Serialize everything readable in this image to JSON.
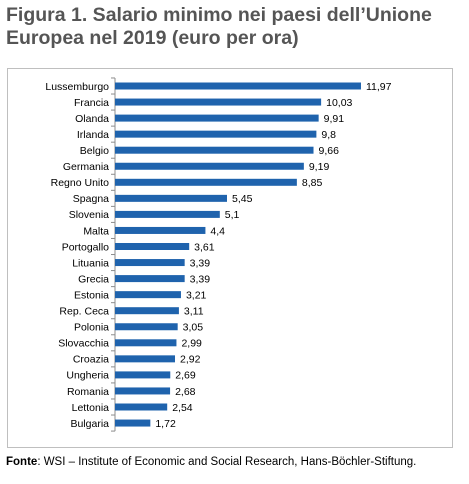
{
  "title": "Figura 1. Salario minimo  nei paesi dell’Unione Europea nel 2019 (euro per ora)",
  "source": {
    "label": "Fonte",
    "text": ": WSI – Institute of Economic and Social Research, Hans-Böchler-Stiftung."
  },
  "colors": {
    "bar": "#1f63ad",
    "axis": "#8c8c8c"
  },
  "chart_data": {
    "type": "bar",
    "orientation": "horizontal",
    "title": "",
    "xlabel": "",
    "ylabel": "",
    "grid": false,
    "legend": "none",
    "xlim": [
      0,
      12
    ],
    "categories": [
      "Lussemburgo",
      "Francia",
      "Olanda",
      "Irlanda",
      "Belgio",
      "Germania",
      "Regno Unito",
      "Spagna",
      "Slovenia",
      "Malta",
      "Portogallo",
      "Lituania",
      "Grecia",
      "Estonia",
      "Rep. Ceca",
      "Polonia",
      "Slovacchia",
      "Croazia",
      "Ungheria",
      "Romania",
      "Lettonia",
      "Bulgaria"
    ],
    "values": [
      11.97,
      10.03,
      9.91,
      9.8,
      9.66,
      9.19,
      8.85,
      5.45,
      5.1,
      4.4,
      3.61,
      3.39,
      3.39,
      3.21,
      3.11,
      3.05,
      2.99,
      2.92,
      2.69,
      2.68,
      2.54,
      1.72
    ],
    "value_labels": [
      "11,97",
      "10,03",
      "9,91",
      "9,8",
      "9,66",
      "9,19",
      "8,85",
      "5,45",
      "5,1",
      "4,4",
      "3,61",
      "3,39",
      "3,39",
      "3,21",
      "3,11",
      "3,05",
      "2,99",
      "2,92",
      "2,69",
      "2,68",
      "2,54",
      "1,72"
    ]
  }
}
